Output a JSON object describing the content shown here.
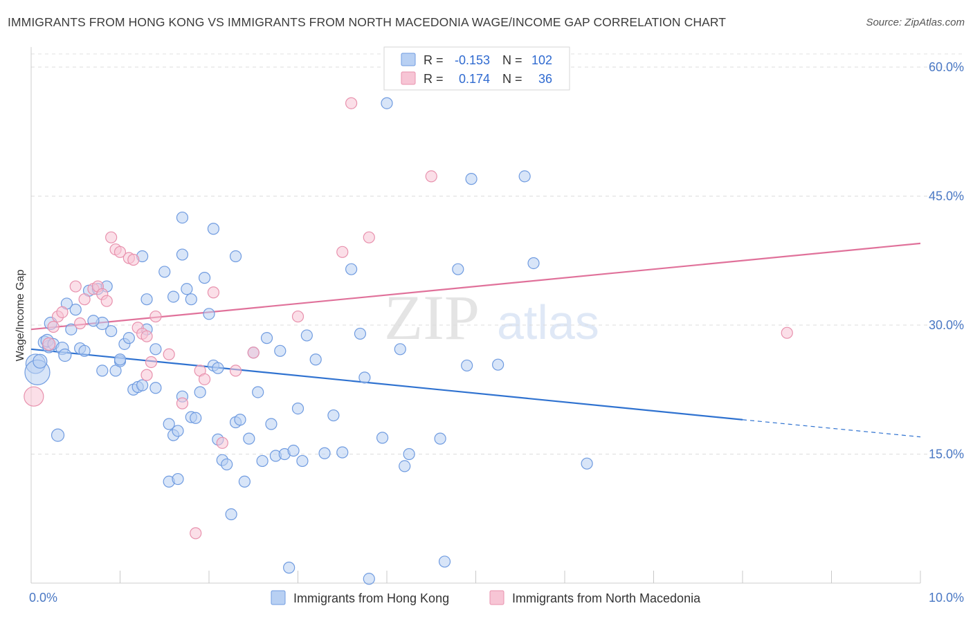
{
  "title": "IMMIGRANTS FROM HONG KONG VS IMMIGRANTS FROM NORTH MACEDONIA WAGE/INCOME GAP CORRELATION CHART",
  "source": "Source: ZipAtlas.com",
  "watermark": {
    "zip": "ZIP",
    "atlas": "atlas"
  },
  "colors": {
    "hong_kong_fill": "#b8d0f3",
    "hong_kong_stroke": "#6f9be0",
    "hong_kong_line": "#2f72d0",
    "macedonia_fill": "#f7c5d5",
    "macedonia_stroke": "#e891ad",
    "macedonia_line": "#e0719a",
    "tick_label": "#4a78c4"
  },
  "legend_box": {
    "rows": [
      {
        "r_label": "R =",
        "r_value": "-0.153",
        "n_label": "N =",
        "n_value": "102"
      },
      {
        "r_label": "R =",
        "r_value": "0.174",
        "n_label": "N =",
        "n_value": "36"
      }
    ]
  },
  "bottom_legend": [
    "Immigrants from Hong Kong",
    "Immigrants from North Macedonia"
  ],
  "chart_data": {
    "type": "scatter",
    "title": "IMMIGRANTS FROM HONG KONG VS IMMIGRANTS FROM NORTH MACEDONIA WAGE/INCOME GAP CORRELATION CHART",
    "xlabel": "",
    "ylabel": "Wage/Income Gap",
    "xlim": [
      0,
      10
    ],
    "ylim": [
      0,
      60
    ],
    "x_tick_labels": [
      "0.0%",
      "10.0%"
    ],
    "y_ticks": [
      15,
      30,
      45,
      60
    ],
    "y_tick_labels": [
      "15.0%",
      "30.0%",
      "45.0%",
      "60.0%"
    ],
    "grid": true,
    "legend_placement": "bottom",
    "series": [
      {
        "name": "Immigrants from Hong Kong",
        "r": -0.153,
        "n": 102,
        "trend": {
          "x": [
            0,
            8.0
          ],
          "y": [
            27.2,
            19.0
          ],
          "dashed_x": [
            8.0,
            10.0
          ],
          "dashed_y": [
            19.0,
            17.0
          ]
        },
        "points": [
          [
            0.05,
            25.5,
            14
          ],
          [
            0.07,
            24.5,
            18
          ],
          [
            0.1,
            25.8,
            10
          ],
          [
            0.15,
            28.0,
            9
          ],
          [
            0.2,
            27.5,
            9
          ],
          [
            0.22,
            30.2,
            9
          ],
          [
            0.18,
            28.2,
            9
          ],
          [
            0.25,
            27.8,
            8
          ],
          [
            0.35,
            27.3,
            9
          ],
          [
            0.38,
            26.5,
            9
          ],
          [
            0.45,
            29.5,
            8
          ],
          [
            0.5,
            31.8,
            8
          ],
          [
            0.55,
            27.3,
            8
          ],
          [
            0.6,
            27.0,
            8
          ],
          [
            0.65,
            34.0,
            8
          ],
          [
            0.75,
            34.2,
            8
          ],
          [
            0.85,
            34.5,
            8
          ],
          [
            0.9,
            29.3,
            8
          ],
          [
            0.8,
            30.2,
            9
          ],
          [
            0.7,
            30.5,
            8
          ],
          [
            0.95,
            24.7,
            8
          ],
          [
            1.0,
            25.8,
            8
          ],
          [
            1.05,
            27.8,
            8
          ],
          [
            1.1,
            28.5,
            8
          ],
          [
            0.4,
            32.5,
            8
          ],
          [
            0.8,
            24.7,
            8
          ],
          [
            1.0,
            26.0,
            8
          ],
          [
            1.15,
            22.5,
            8
          ],
          [
            1.2,
            22.8,
            8
          ],
          [
            1.25,
            23.0,
            8
          ],
          [
            1.3,
            29.5,
            8
          ],
          [
            1.3,
            33.0,
            8
          ],
          [
            1.4,
            27.2,
            8
          ],
          [
            1.4,
            22.7,
            8
          ],
          [
            1.5,
            36.2,
            8
          ],
          [
            1.55,
            18.5,
            8
          ],
          [
            1.6,
            33.3,
            8
          ],
          [
            1.6,
            17.2,
            8
          ],
          [
            1.65,
            17.7,
            8
          ],
          [
            1.7,
            21.7,
            8
          ],
          [
            1.75,
            34.2,
            8
          ],
          [
            1.8,
            33.0,
            8
          ],
          [
            1.55,
            11.8,
            8
          ],
          [
            1.65,
            12.1,
            8
          ],
          [
            1.7,
            38.2,
            8
          ],
          [
            1.7,
            42.5,
            8
          ],
          [
            1.8,
            19.3,
            8
          ],
          [
            1.85,
            19.2,
            8
          ],
          [
            1.9,
            22.2,
            8
          ],
          [
            1.95,
            35.5,
            8
          ],
          [
            2.0,
            31.3,
            8
          ],
          [
            2.05,
            25.3,
            8
          ],
          [
            2.1,
            25.0,
            8
          ],
          [
            2.05,
            41.2,
            8
          ],
          [
            2.1,
            16.7,
            8
          ],
          [
            2.15,
            14.3,
            8
          ],
          [
            2.2,
            13.8,
            8
          ],
          [
            2.25,
            8.0,
            8
          ],
          [
            2.3,
            18.7,
            8
          ],
          [
            2.35,
            19.0,
            8
          ],
          [
            2.3,
            38.0,
            8
          ],
          [
            2.4,
            11.8,
            8
          ],
          [
            2.45,
            16.8,
            8
          ],
          [
            2.5,
            26.8,
            8
          ],
          [
            2.55,
            22.2,
            8
          ],
          [
            2.6,
            14.2,
            8
          ],
          [
            2.65,
            28.5,
            8
          ],
          [
            2.7,
            18.5,
            8
          ],
          [
            2.75,
            14.8,
            8
          ],
          [
            2.8,
            27.0,
            8
          ],
          [
            2.85,
            15.0,
            8
          ],
          [
            2.9,
            1.8,
            8
          ],
          [
            2.95,
            15.4,
            8
          ],
          [
            3.0,
            20.3,
            8
          ],
          [
            3.05,
            14.2,
            8
          ],
          [
            3.1,
            28.8,
            8
          ],
          [
            3.2,
            26.0,
            8
          ],
          [
            3.3,
            15.1,
            8
          ],
          [
            3.4,
            19.5,
            8
          ],
          [
            3.5,
            15.2,
            8
          ],
          [
            3.6,
            36.5,
            8
          ],
          [
            3.7,
            29.0,
            8
          ],
          [
            3.75,
            23.9,
            8
          ],
          [
            3.8,
            0.5,
            8
          ],
          [
            3.95,
            16.9,
            8
          ],
          [
            4.0,
            55.8,
            8
          ],
          [
            4.15,
            27.2,
            8
          ],
          [
            4.2,
            13.6,
            8
          ],
          [
            4.25,
            15.0,
            8
          ],
          [
            4.6,
            16.8,
            8
          ],
          [
            4.65,
            2.5,
            8
          ],
          [
            4.8,
            36.5,
            8
          ],
          [
            4.95,
            47.0,
            8
          ],
          [
            4.9,
            25.3,
            8
          ],
          [
            5.25,
            25.4,
            8
          ],
          [
            5.55,
            47.3,
            8
          ],
          [
            5.65,
            37.2,
            8
          ],
          [
            6.25,
            13.9,
            8
          ],
          [
            1.25,
            38.0,
            8
          ],
          [
            0.3,
            17.2,
            9
          ]
        ]
      },
      {
        "name": "Immigrants from North Macedonia",
        "r": 0.174,
        "n": 36,
        "trend": {
          "x": [
            0,
            10.0
          ],
          "y": [
            29.5,
            39.5
          ]
        },
        "points": [
          [
            0.03,
            21.7,
            14
          ],
          [
            0.2,
            27.8,
            9
          ],
          [
            0.25,
            29.8,
            8
          ],
          [
            0.3,
            31.0,
            8
          ],
          [
            0.35,
            31.5,
            8
          ],
          [
            0.5,
            34.5,
            8
          ],
          [
            0.55,
            30.2,
            8
          ],
          [
            0.6,
            33.0,
            8
          ],
          [
            0.7,
            34.2,
            8
          ],
          [
            0.75,
            34.5,
            8
          ],
          [
            0.8,
            33.6,
            8
          ],
          [
            0.85,
            32.8,
            8
          ],
          [
            0.95,
            38.8,
            8
          ],
          [
            0.9,
            40.2,
            8
          ],
          [
            1.0,
            38.5,
            8
          ],
          [
            1.1,
            37.8,
            8
          ],
          [
            1.15,
            37.6,
            8
          ],
          [
            1.2,
            29.7,
            8
          ],
          [
            1.25,
            29.0,
            8
          ],
          [
            1.3,
            28.7,
            8
          ],
          [
            1.3,
            24.2,
            8
          ],
          [
            1.35,
            25.7,
            8
          ],
          [
            1.4,
            31.0,
            8
          ],
          [
            1.55,
            26.6,
            8
          ],
          [
            1.7,
            20.9,
            8
          ],
          [
            1.85,
            5.8,
            8
          ],
          [
            1.9,
            24.7,
            8
          ],
          [
            1.95,
            23.7,
            8
          ],
          [
            2.05,
            33.8,
            8
          ],
          [
            2.15,
            16.3,
            8
          ],
          [
            2.3,
            24.7,
            8
          ],
          [
            2.5,
            26.8,
            8
          ],
          [
            3.0,
            31.0,
            8
          ],
          [
            3.5,
            38.5,
            8
          ],
          [
            3.6,
            55.8,
            8
          ],
          [
            3.8,
            40.2,
            8
          ],
          [
            4.5,
            47.3,
            8
          ],
          [
            8.5,
            29.1,
            8
          ]
        ]
      }
    ]
  }
}
